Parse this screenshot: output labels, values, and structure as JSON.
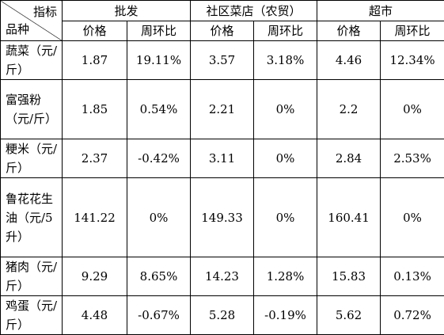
{
  "header": {
    "corner_top": "指标",
    "corner_bottom": "品种",
    "groups": [
      "批发",
      "社区菜店（农贸）",
      "超市"
    ],
    "subheaders": [
      "价格",
      "周环比",
      "价格",
      "周环比",
      "价格",
      "周环比"
    ]
  },
  "table": {
    "rows": [
      [
        "蔬菜（元/斤）",
        "1.87",
        "19.11%",
        "3.57",
        "3.18%",
        "4.46",
        "12.34%"
      ],
      [
        "富强粉（元/斤）",
        "1.85",
        "0.54%",
        "2.21",
        "0%",
        "2.2",
        "0%"
      ],
      [
        "粳米（元/斤）",
        "2.37",
        "-0.42%",
        "3.11",
        "0%",
        "2.84",
        "2.53%"
      ],
      [
        "鲁花花生油（元/5升）",
        "141.22",
        "0%",
        "149.33",
        "0%",
        "160.41",
        "0%"
      ],
      [
        "猪肉（元/斤）",
        "9.29",
        "8.65%",
        "14.23",
        "1.28%",
        "15.83",
        "0.13%"
      ],
      [
        "鸡蛋（元/斤）",
        "4.48",
        "-0.67%",
        "5.28",
        "-0.19%",
        "5.62",
        "0.72%"
      ]
    ]
  }
}
